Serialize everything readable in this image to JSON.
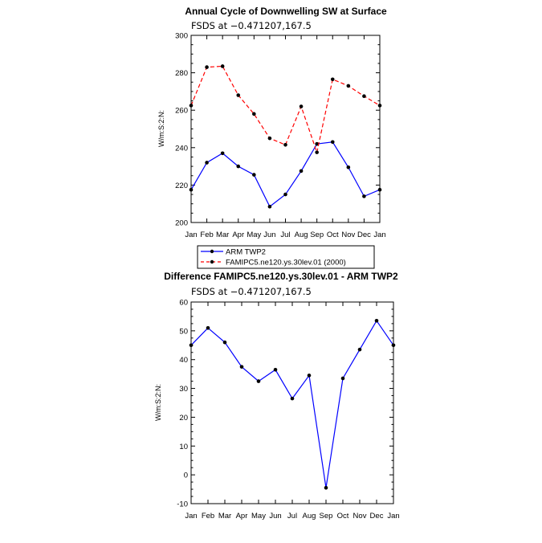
{
  "chart_data": [
    {
      "type": "line",
      "title": "Annual Cycle of Downwelling SW at Surface",
      "subtitle": "FSDS at −0.471207,167.5",
      "xlabel": "",
      "ylabel": "W/m:S:2:N:",
      "categories": [
        "Jan",
        "Feb",
        "Mar",
        "Apr",
        "May",
        "Jun",
        "Jul",
        "Aug",
        "Sep",
        "Oct",
        "Nov",
        "Dec",
        "Jan"
      ],
      "ylim": [
        200,
        300
      ],
      "yticks": [
        200,
        220,
        240,
        260,
        280,
        300
      ],
      "series": [
        {
          "name": "ARM TWP2",
          "color": "#0000ff",
          "dash": "solid",
          "values": [
            217.5,
            232,
            237,
            230,
            225.5,
            208.5,
            215,
            227.5,
            242,
            243,
            229.5,
            214,
            217.5
          ]
        },
        {
          "name": "FAMIPC5.ne120.ys.30lev.01 (2000)",
          "color": "#ff0000",
          "dash": "dashed",
          "values": [
            262.5,
            283,
            283.5,
            268,
            258,
            245,
            241.5,
            262,
            237.5,
            276.5,
            273,
            267.5,
            262.5
          ]
        }
      ],
      "legend": "bottom"
    },
    {
      "type": "line",
      "title": "Difference FAMIPC5.ne120.ys.30lev.01 - ARM TWP2",
      "subtitle": "FSDS at −0.471207,167.5",
      "xlabel": "",
      "ylabel": "W/m:S:2:N:",
      "categories": [
        "Jan",
        "Feb",
        "Mar",
        "Apr",
        "May",
        "Jun",
        "Jul",
        "Aug",
        "Sep",
        "Oct",
        "Nov",
        "Dec",
        "Jan"
      ],
      "ylim": [
        -10,
        60
      ],
      "yticks": [
        -10,
        0,
        10,
        20,
        30,
        40,
        50,
        60
      ],
      "series": [
        {
          "name": "Difference",
          "color": "#0000ff",
          "dash": "solid",
          "values": [
            45,
            51,
            46,
            37.5,
            32.5,
            36.5,
            26.5,
            34.5,
            -4.5,
            33.5,
            43.5,
            53.5,
            45
          ]
        }
      ]
    }
  ]
}
